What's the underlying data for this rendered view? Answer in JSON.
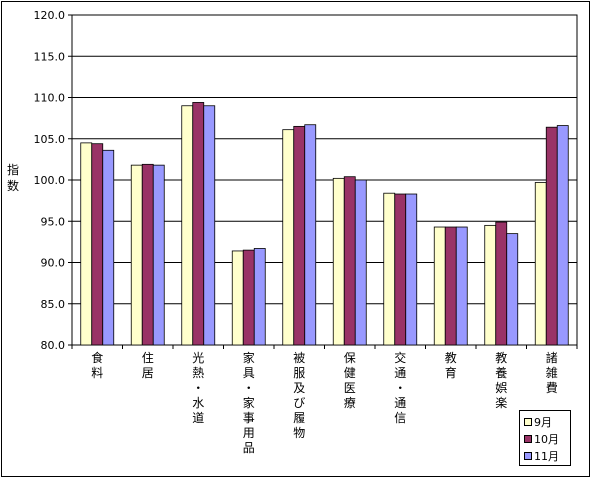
{
  "chart_data": {
    "type": "bar",
    "title": "",
    "xlabel": "",
    "ylabel": "指数",
    "ylim": [
      80.0,
      120.0
    ],
    "yticks": [
      "80.0",
      "85.0",
      "90.0",
      "95.0",
      "100.0",
      "105.0",
      "110.0",
      "115.0",
      "120.0"
    ],
    "grid": true,
    "legend_position": "bottom-right",
    "categories": [
      "食料",
      "住居",
      "光熱・水道",
      "家具・家事用品",
      "被服及び履物",
      "保健医療",
      "交通・通信",
      "教育",
      "教養娯楽",
      "諸雑費"
    ],
    "series": [
      {
        "name": "9月",
        "color": "#ffffcc",
        "values": [
          104.5,
          101.8,
          109.0,
          91.4,
          106.1,
          100.2,
          98.4,
          94.3,
          94.5,
          99.7
        ]
      },
      {
        "name": "10月",
        "color": "#993366",
        "values": [
          104.4,
          101.9,
          109.4,
          91.5,
          106.5,
          100.4,
          98.3,
          94.3,
          94.9,
          106.4
        ]
      },
      {
        "name": "11月",
        "color": "#9999ff",
        "values": [
          103.6,
          101.8,
          109.0,
          91.7,
          106.7,
          100.0,
          98.3,
          94.3,
          93.5,
          106.6
        ]
      }
    ]
  }
}
